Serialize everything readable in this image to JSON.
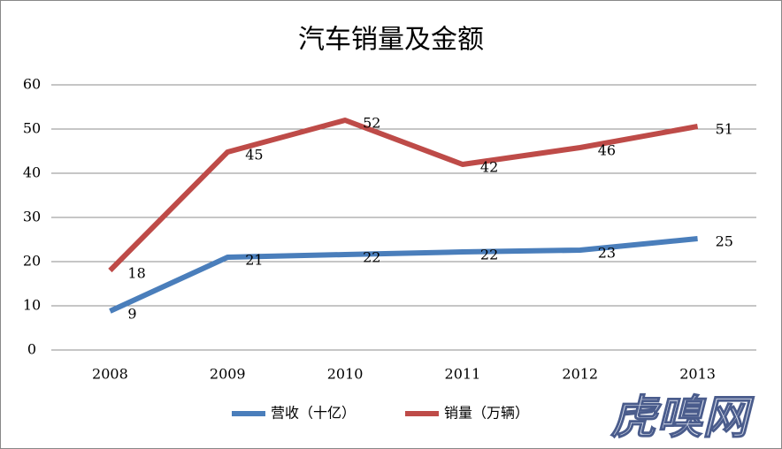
{
  "chart_data": {
    "type": "line",
    "title": "汽车销量及金额",
    "categories": [
      "2008",
      "2009",
      "2010",
      "2011",
      "2012",
      "2013"
    ],
    "series": [
      {
        "name": "营收（十亿）",
        "color": "#4a7ebb",
        "values": [
          8.8,
          21,
          21.6,
          22.2,
          22.6,
          25.2
        ],
        "value_labels": [
          "9",
          "21",
          "22",
          "22",
          "23",
          "25"
        ]
      },
      {
        "name": "销量（万辆）",
        "color": "#be4b48",
        "values": [
          18,
          44.8,
          52,
          42,
          45.8,
          50.6
        ],
        "value_labels": [
          "18",
          "45",
          "52",
          "42",
          "46",
          "51"
        ]
      }
    ],
    "ylim": [
      0,
      60
    ],
    "yticks": [
      0,
      10,
      20,
      30,
      40,
      50,
      60
    ],
    "grid": true,
    "legend": "bottom",
    "watermark": "虎嗅网"
  }
}
